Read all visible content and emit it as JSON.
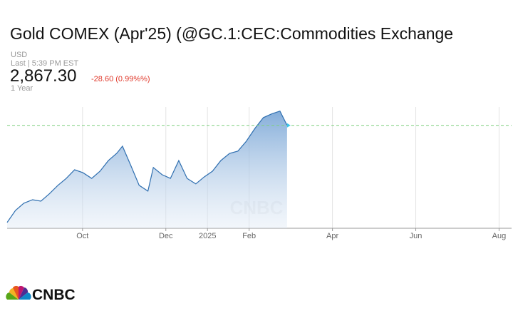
{
  "header": {
    "title": "Gold COMEX (Apr'25) (@GC.1:CEC:Commodities Exchange",
    "currency": "USD",
    "last_time": "Last | 5:39 PM EST",
    "price": "2,867.30",
    "change": "-28.60 (0.99%%)",
    "range": "1 Year"
  },
  "chart_data": {
    "type": "area",
    "x": [
      8.19,
      8.39,
      8.59,
      8.8,
      9.0,
      9.2,
      9.41,
      9.61,
      9.81,
      10.01,
      10.22,
      10.42,
      10.62,
      10.82,
      10.96,
      11.16,
      11.36,
      11.57,
      11.7,
      11.91,
      12.11,
      12.31,
      12.51,
      12.72,
      12.92,
      13.12,
      13.32,
      13.53,
      13.73,
      13.93,
      14.14,
      14.34,
      14.54,
      14.74,
      14.91
    ],
    "series": [
      {
        "color": "#2f6fb0",
        "values": [
          2530,
          2572,
          2597,
          2609,
          2604,
          2629,
          2659,
          2683,
          2713,
          2703,
          2683,
          2708,
          2745,
          2770,
          2795,
          2728,
          2659,
          2639,
          2721,
          2696,
          2683,
          2745,
          2683,
          2664,
          2688,
          2708,
          2745,
          2770,
          2778,
          2812,
          2857,
          2894,
          2907,
          2917,
          2867.3
        ]
      }
    ],
    "xlim": [
      8.19,
      20.3
    ],
    "xticks": [
      {
        "value": 10,
        "label": "Oct"
      },
      {
        "value": 12,
        "label": "Dec"
      },
      {
        "value": 13,
        "label": "2025"
      },
      {
        "value": 14,
        "label": "Feb"
      },
      {
        "value": 16,
        "label": "Apr"
      },
      {
        "value": 18,
        "label": "Jun"
      },
      {
        "value": 20,
        "label": "Aug"
      }
    ],
    "ylim": [
      2510,
      2931
    ],
    "grid": true
  },
  "logo": "CNBC"
}
